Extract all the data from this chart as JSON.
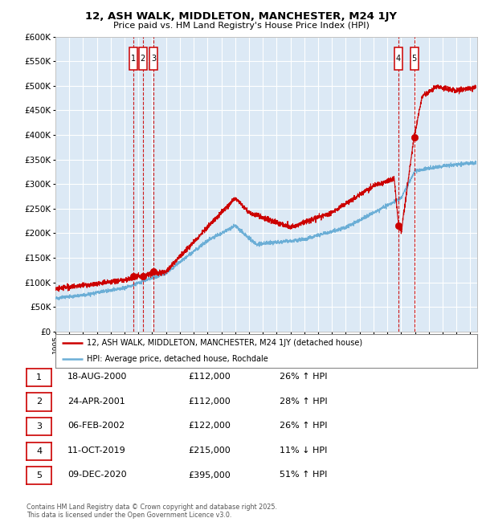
{
  "title": "12, ASH WALK, MIDDLETON, MANCHESTER, M24 1JY",
  "subtitle": "Price paid vs. HM Land Registry's House Price Index (HPI)",
  "legend_line1": "12, ASH WALK, MIDDLETON, MANCHESTER, M24 1JY (detached house)",
  "legend_line2": "HPI: Average price, detached house, Rochdale",
  "footer_line1": "Contains HM Land Registry data © Crown copyright and database right 2025.",
  "footer_line2": "This data is licensed under the Open Government Licence v3.0.",
  "transactions": [
    {
      "num": 1,
      "date": "18-AUG-2000",
      "price": 112000,
      "pct": "26%",
      "dir": "↑"
    },
    {
      "num": 2,
      "date": "24-APR-2001",
      "price": 112000,
      "pct": "28%",
      "dir": "↑"
    },
    {
      "num": 3,
      "date": "06-FEB-2002",
      "price": 122000,
      "pct": "26%",
      "dir": "↑"
    },
    {
      "num": 4,
      "date": "11-OCT-2019",
      "price": 215000,
      "pct": "11%",
      "dir": "↓"
    },
    {
      "num": 5,
      "date": "09-DEC-2020",
      "price": 395000,
      "pct": "51%",
      "dir": "↑"
    }
  ],
  "transaction_dates_decimal": [
    2000.63,
    2001.31,
    2002.09,
    2019.78,
    2020.94
  ],
  "transaction_prices": [
    112000,
    112000,
    122000,
    215000,
    395000
  ],
  "ylim": [
    0,
    600000
  ],
  "yticks": [
    0,
    50000,
    100000,
    150000,
    200000,
    250000,
    300000,
    350000,
    400000,
    450000,
    500000,
    550000,
    600000
  ],
  "xlim_start": 1995.0,
  "xlim_end": 2025.5,
  "bg_color": "#dce9f5",
  "grid_color": "#ffffff",
  "hpi_color": "#6baed6",
  "price_color": "#cc0000",
  "vline_color": "#cc0000",
  "box_edge_color": "#cc0000"
}
